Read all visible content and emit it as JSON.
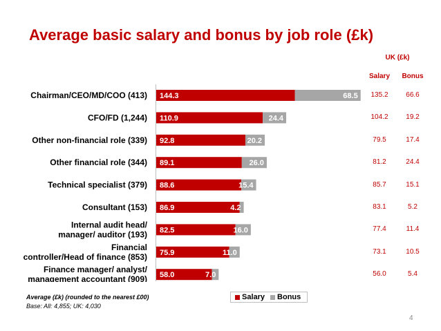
{
  "slide": {
    "title": "Average basic salary and bonus by job role (£k)",
    "uk_header": "UK (£k)",
    "uk_salary_header": "Salary",
    "uk_bonus_header": "Bonus",
    "note_average": "Average (£k) (rounded to the nearest £00)",
    "note_base": "Base:  All: 4,855; UK: 4,030",
    "page_number": "4"
  },
  "colors": {
    "salary": "#c00000",
    "bonus": "#a6a6a6",
    "accent": "#c00000"
  },
  "chart_data": {
    "type": "bar",
    "orientation": "horizontal",
    "stacked": true,
    "title": "Average basic salary and bonus by job role (£k)",
    "categories": [
      "Chairman/CEO/MD/COO (413)",
      "CFO/FD (1,244)",
      "Other non-financial role (339)",
      "Other financial role (344)",
      "Technical specialist (379)",
      "Consultant (153)",
      "Internal audit head/ manager/ auditor (193)",
      "Financial controller/Head of finance (853)",
      "Finance manager/ analyst/ management accountant (909)"
    ],
    "series": [
      {
        "name": "Salary",
        "values": [
          144.3,
          110.9,
          92.8,
          89.1,
          88.6,
          86.9,
          82.5,
          75.9,
          58.0
        ]
      },
      {
        "name": "Bonus",
        "values": [
          68.5,
          24.4,
          20.2,
          26.0,
          15.4,
          4.2,
          16.0,
          11.0,
          7.0
        ]
      }
    ],
    "value_labels": {
      "Salary": [
        "144.3",
        "110.9",
        "92.8",
        "89.1",
        "88.6",
        "86.9",
        "82.5",
        "75.9",
        "58.0"
      ],
      "Bonus": [
        "68.5",
        "24.4",
        "20.2",
        "26.0",
        "15.4",
        "4.2",
        "16.0",
        "11.0",
        "7.0"
      ]
    },
    "uk_salary": [
      "135.2",
      "104.2",
      "79.5",
      "81.2",
      "85.7",
      "83.1",
      "77.4",
      "73.1",
      "56.0"
    ],
    "uk_bonus": [
      "66.6",
      "19.2",
      "17.4",
      "24.4",
      "15.1",
      "5.2",
      "11.4",
      "10.5",
      "5.4"
    ],
    "xlim": [
      0,
      213
    ],
    "legend": "bottom",
    "grid": false
  }
}
